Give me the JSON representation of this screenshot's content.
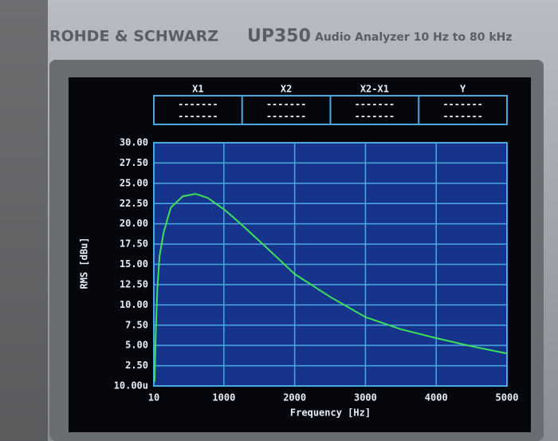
{
  "device": {
    "brand": "ROHDE & SCHWARZ",
    "model": "UP350",
    "description": "Audio Analyzer 10 Hz to 80 kHz"
  },
  "markers": [
    {
      "name": "X1",
      "lines": [
        "-------",
        "-------"
      ]
    },
    {
      "name": "X2",
      "lines": [
        "-------",
        "-------"
      ]
    },
    {
      "name": "X2-X1",
      "lines": [
        "-------",
        "-------"
      ]
    },
    {
      "name": "Y",
      "lines": [
        "-------",
        "-------"
      ]
    }
  ],
  "chart_data": {
    "type": "line",
    "x_label": "Frequency [Hz]",
    "y_label": "RMS [dBu]",
    "xlim": [
      10,
      5000
    ],
    "xticks": [
      10,
      1000,
      2000,
      3000,
      4000,
      5000
    ],
    "ylim": [
      1e-05,
      30
    ],
    "yticks": [
      {
        "value": 1e-05,
        "label": "10.00u"
      },
      {
        "value": 2.5,
        "label": "2.50"
      },
      {
        "value": 5,
        "label": "5.00"
      },
      {
        "value": 7.5,
        "label": "7.50"
      },
      {
        "value": 10,
        "label": "10.00"
      },
      {
        "value": 12.5,
        "label": "12.50"
      },
      {
        "value": 15,
        "label": "15.00"
      },
      {
        "value": 17.5,
        "label": "17.50"
      },
      {
        "value": 20,
        "label": "20.00"
      },
      {
        "value": 22.5,
        "label": "22.50"
      },
      {
        "value": 25,
        "label": "25.00"
      },
      {
        "value": 27.5,
        "label": "27.50"
      },
      {
        "value": 30,
        "label": "30.00"
      }
    ],
    "grid": true,
    "series": [
      {
        "color": "#3de05a",
        "x": [
          20,
          40,
          60,
          90,
          150,
          250,
          420,
          600,
          770,
          1000,
          1200,
          1550,
          2000,
          2500,
          3000,
          3500,
          4000,
          4500,
          5000
        ],
        "values": [
          0.5,
          7.5,
          12,
          16,
          19,
          22,
          23.4,
          23.7,
          23.2,
          21.8,
          20.3,
          17.5,
          13.8,
          11,
          8.5,
          7,
          5.9,
          4.9,
          4.0
        ]
      }
    ]
  }
}
